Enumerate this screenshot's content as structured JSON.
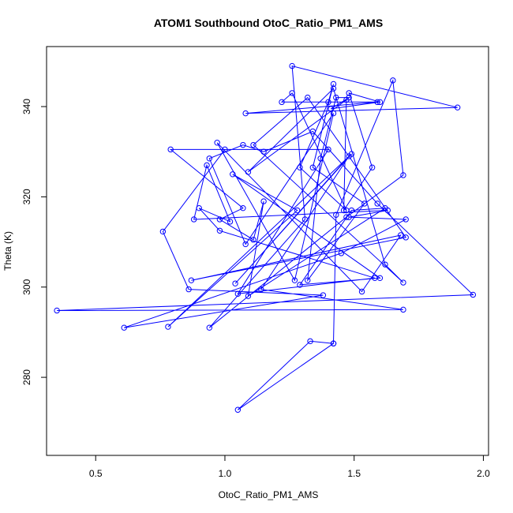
{
  "chart_data": {
    "type": "line",
    "title": "ATOM1 Southbound OtoC_Ratio_PM1_AMS",
    "xlabel": "OtoC_Ratio_PM1_AMS",
    "ylabel": "Theta (K)",
    "xlim": [
      0.31,
      2.02
    ],
    "ylim": [
      262.7,
      353.3
    ],
    "xticks": [
      0.5,
      1.0,
      1.5,
      2.0
    ],
    "xtick_labels": [
      "0.5",
      "1.0",
      "1.5",
      "2.0"
    ],
    "yticks": [
      280,
      300,
      320,
      340
    ],
    "ytick_labels": [
      "280",
      "300",
      "320",
      "340"
    ],
    "grid": false,
    "legend": "none",
    "color": "#0000ff",
    "marker": "open-circle",
    "series": [
      {
        "x": [
          1.42,
          1.33,
          1.05,
          1.42,
          1.43,
          1.65,
          1.69,
          1.47,
          0.94,
          1.31,
          1.26,
          1.9,
          1.08,
          1.59,
          1.22,
          1.26,
          1.47,
          1.29,
          1.4,
          1.42,
          1.34,
          1.54,
          1.32,
          1.37,
          1.43,
          1.48,
          1.41,
          1.6,
          1.48,
          1.57,
          1.46,
          1.47,
          1.09,
          1.42,
          1.62,
          1.69,
          1.11,
          1.32,
          1.7,
          0.87,
          1.68,
          1.53,
          0.97,
          1.27,
          1.42,
          1.08,
          0.94,
          1.07,
          1.15,
          1.34,
          1.59,
          1.96,
          0.35,
          1.69,
          1.14,
          1.48,
          1.04,
          1.49,
          0.78,
          1.28,
          1.03,
          1.6,
          1.29,
          1.49,
          1.62,
          1.09,
          1.15,
          1.11,
          0.98,
          1.07,
          0.79,
          1.4,
          1.05,
          1.58,
          0.98,
          0.9,
          1.02,
          0.93,
          0.88,
          1.63,
          1.48,
          1.7,
          1.45,
          0.61,
          1.38,
          0.86,
          0.76,
          1.0
        ],
        "y": [
          287.5,
          288,
          272.8,
          287.5,
          316,
          345.8,
          324.8,
          315.5,
          291,
          315,
          349,
          339.8,
          338.5,
          341,
          341,
          343,
          317,
          326.5,
          341,
          345,
          326.5,
          318.5,
          301.5,
          328.5,
          342,
          342,
          339.5,
          341,
          343,
          326.5,
          317,
          341.5,
          325.5,
          344,
          305,
          301,
          331.5,
          342,
          311,
          301.5,
          311.5,
          299,
          332,
          301.5,
          338.5,
          309.5,
          328.5,
          331.5,
          330,
          334.5,
          318.5,
          298.3,
          294.8,
          295,
          299.5,
          329,
          300.8,
          329.5,
          291.2,
          317,
          325,
          302,
          300.5,
          317,
          317.5,
          298,
          319,
          310.5,
          315,
          317.5,
          330.5,
          330.5,
          298.5,
          302,
          312.5,
          317.5,
          314.5,
          327,
          315,
          317,
          315.5,
          315,
          307.5,
          291,
          298.2,
          299.5,
          312.3,
          330.5
        ]
      }
    ]
  }
}
